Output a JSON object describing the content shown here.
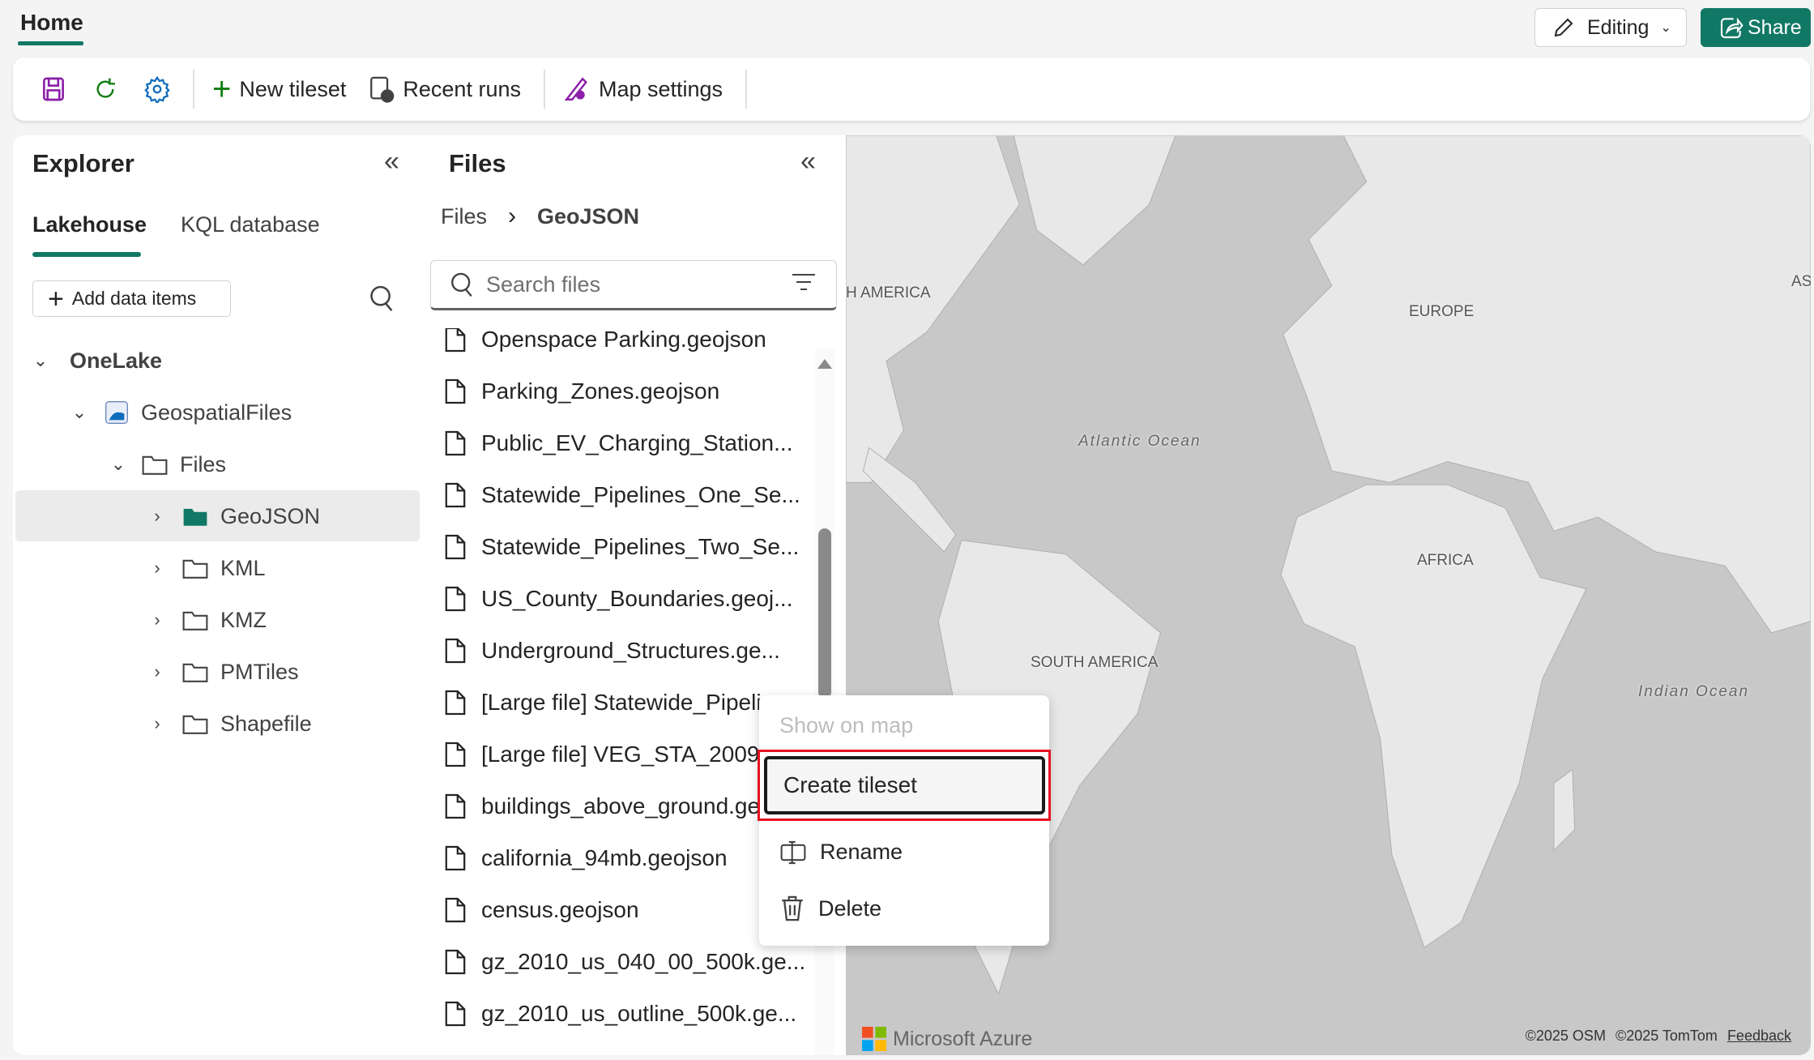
{
  "header": {
    "tab": "Home",
    "editing_label": "Editing",
    "share_label": "Share"
  },
  "toolbar": {
    "new_tileset": "New tileset",
    "recent_runs": "Recent runs",
    "map_settings": "Map settings"
  },
  "explorer": {
    "title": "Explorer",
    "tabs": [
      "Lakehouse",
      "KQL database"
    ],
    "add_data_items": "Add data items",
    "tree": [
      {
        "label": "OneLake"
      },
      {
        "label": "GeospatialFiles"
      },
      {
        "label": "Files"
      },
      {
        "label": "GeoJSON",
        "selected": true
      },
      {
        "label": "KML"
      },
      {
        "label": "KMZ"
      },
      {
        "label": "PMTiles"
      },
      {
        "label": "Shapefile"
      }
    ]
  },
  "files": {
    "title": "Files",
    "breadcrumb": [
      "Files",
      "GeoJSON"
    ],
    "search_placeholder": "Search files",
    "items": [
      "Openspace Parking.geojson",
      "Parking_Zones.geojson",
      "Public_EV_Charging_Station...",
      "Statewide_Pipelines_One_Se...",
      "Statewide_Pipelines_Two_Se...",
      "US_County_Boundaries.geoj...",
      "Underground_Structures.ge...",
      "[Large file] Statewide_Pipeli...",
      "[Large file] VEG_STA_2009_4...",
      "buildings_above_ground.geojson",
      "california_94mb.geojson",
      "census.geojson",
      "gz_2010_us_040_00_500k.ge...",
      "gz_2010_us_outline_500k.ge..."
    ]
  },
  "context_menu": {
    "items": [
      "Show on map",
      "Create tileset",
      "Rename",
      "Delete"
    ],
    "disabled": "Show on map",
    "highlighted": "Create tileset"
  },
  "map": {
    "labels": {
      "north_america": "H AMERICA",
      "europe": "EUROPE",
      "asia": "AS",
      "atlantic": "Atlantic Ocean",
      "africa": "AFRICA",
      "south_america": "SOUTH AMERICA",
      "indian": "Indian Ocean"
    },
    "brand": "Microsoft Azure",
    "attribution": [
      "©2025 OSM",
      "©2025 TomTom"
    ],
    "feedback": "Feedback"
  },
  "colors": {
    "accent": "#117865",
    "highlight_border": "#e81123"
  }
}
